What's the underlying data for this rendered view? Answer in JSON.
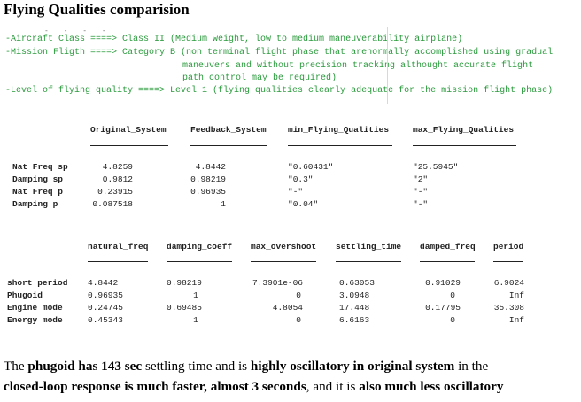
{
  "title": "Flying Qualities comparision",
  "cut_marks": "- - - -",
  "spec_lines": [
    "-Aircraft Class ====> Class II (Medium weight, low to medium maneuverability airplane)",
    "-Mission Fligth ====> Category B (non terminal flight phase that arenormally accomplished using gradual",
    "maneuvers and without precision tracking althought accurate flight",
    "path control may be required)",
    "-Level of flying quality ====> Level 1 (flying qualities clearly adequate for the mission flight phase)"
  ],
  "table1": {
    "headers": [
      "Original_System",
      "Feedback_System",
      "min_Flying_Qualities",
      "max_Flying_Qualities"
    ],
    "rows": [
      {
        "label": "Nat Freq sp",
        "cells": [
          "4.8259",
          "4.8442",
          "\"0.60431\"",
          "\"25.5945\""
        ]
      },
      {
        "label": "Damping  sp",
        "cells": [
          "0.9812",
          "0.98219",
          "\"0.3\"",
          "\"2\""
        ]
      },
      {
        "label": "Nat Freq  p",
        "cells": [
          "0.23915",
          "0.96935",
          "\"-\"",
          "\"-\""
        ]
      },
      {
        "label": "Damping   p",
        "cells": [
          "0.087518",
          "1",
          "\"0.04\"",
          "\"-\""
        ]
      }
    ]
  },
  "table2": {
    "headers": [
      "natural_freq",
      "damping_coeff",
      "max_overshoot",
      "settling_time",
      "damped_freq",
      "period"
    ],
    "rows": [
      {
        "label": "short period",
        "cells": [
          "4.8442",
          "0.98219",
          "7.3901e-06",
          "0.63053",
          "0.91029",
          "6.9024"
        ]
      },
      {
        "label": "Phugoid",
        "cells": [
          "0.96935",
          "1",
          "0",
          "3.0948",
          "0",
          "Inf"
        ]
      },
      {
        "label": "Engine mode",
        "cells": [
          "0.24745",
          "0.69485",
          "4.8054",
          "17.448",
          "0.17795",
          "35.308"
        ]
      },
      {
        "label": "Energy mode",
        "cells": [
          "0.45343",
          "1",
          "0",
          "6.6163",
          "0",
          "Inf"
        ]
      }
    ]
  },
  "paragraph": {
    "l1_a": "The ",
    "l1_b": "phugoid has 143 sec",
    "l1_c": " settling time and is ",
    "l1_d": "highly oscillatory in original system",
    "l1_e": "  in the",
    "l2_a": "closed-loop response is much faster, almost 3 seconds",
    "l2_b": ", and it is ",
    "l2_c": "also much less oscillatory"
  },
  "colors": {
    "spec_text": "#2a9a3c",
    "table_text": "#222222"
  }
}
